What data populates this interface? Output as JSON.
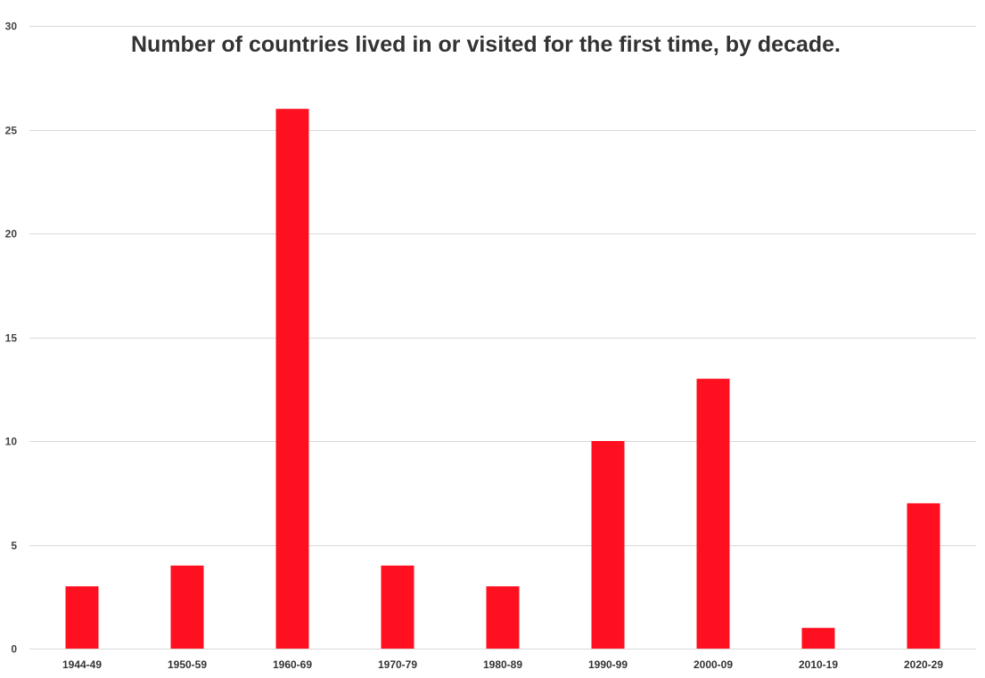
{
  "chart_data": {
    "type": "bar",
    "title": "Number of countries lived in or visited for the first time, by decade.",
    "xlabel": "",
    "ylabel": "",
    "categories": [
      "1944-49",
      "1950-59",
      "1960-69",
      "1970-79",
      "1980-89",
      "1990-99",
      "2000-09",
      "2010-19",
      "2020-29"
    ],
    "values": [
      3,
      4,
      26,
      4,
      3,
      10,
      13,
      1,
      7
    ],
    "ylim": [
      0,
      30
    ],
    "yticks": [
      0,
      5,
      10,
      15,
      20,
      25,
      30
    ],
    "grid": true,
    "legend": "none",
    "bar_color": "#ff1020",
    "grid_color": "#d9d9d9"
  }
}
